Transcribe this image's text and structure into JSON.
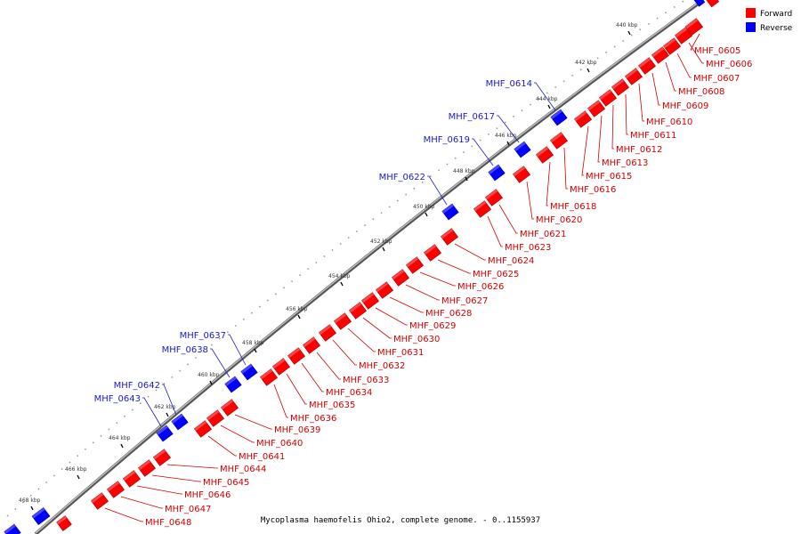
{
  "colors": {
    "forward": "#ff0000",
    "reverse": "#0000ff",
    "forward_label": "#d40000",
    "reverse_label": "#1a1acc"
  },
  "legend": {
    "forward": "Forward",
    "reverse": "Reverse"
  },
  "caption": "Mycoplasma haemofelis Ohio2, complete genome. - 0..1155937",
  "ticks": [
    "440 kbp",
    "442 kbp",
    "444 kbp",
    "446 kbp",
    "448 kbp",
    "450 kbp",
    "452 kbp",
    "454 kbp",
    "456 kbp",
    "458 kbp",
    "460 kbp",
    "462 kbp",
    "464 kbp",
    "466 kbp",
    "468 kbp"
  ],
  "forward_genes": [
    "MHF_0605",
    "MHF_0606",
    "MHF_0607",
    "MHF_0608",
    "MHF_0609",
    "MHF_0610",
    "MHF_0611",
    "MHF_0612",
    "MHF_0613",
    "MHF_0615",
    "MHF_0616",
    "MHF_0618",
    "MHF_0620",
    "MHF_0621",
    "MHF_0623",
    "MHF_0624",
    "MHF_0625",
    "MHF_0626",
    "MHF_0627",
    "MHF_0628",
    "MHF_0629",
    "MHF_0630",
    "MHF_0631",
    "MHF_0632",
    "MHF_0633",
    "MHF_0634",
    "MHF_0635",
    "MHF_0636",
    "MHF_0639",
    "MHF_0640",
    "MHF_0641",
    "MHF_0644",
    "MHF_0645",
    "MHF_0646",
    "MHF_0647",
    "MHF_0648"
  ],
  "reverse_genes": [
    "MHF_0614",
    "MHF_0617",
    "MHF_0619",
    "MHF_0622",
    "MHF_0637",
    "MHF_0638",
    "MHF_0642",
    "MHF_0643"
  ]
}
